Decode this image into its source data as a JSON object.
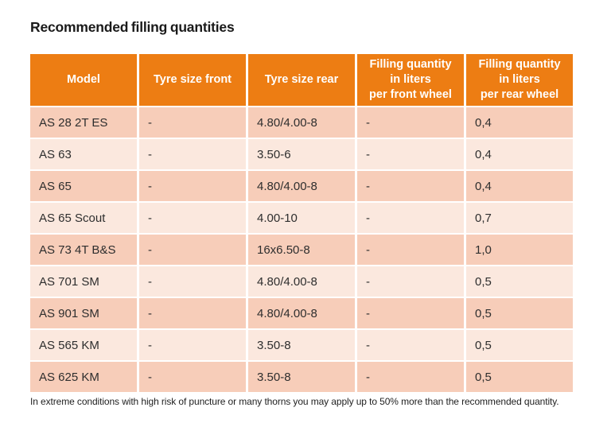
{
  "page": {
    "title": "Recommended filling quantities",
    "footnote": "In extreme conditions with high risk of puncture or many thorns you may apply up to 50% more than the recommended quantity."
  },
  "colors": {
    "header_bg": "#ED7D13",
    "header_text": "#FFFFFF",
    "row_dark": "#F7CDB9",
    "row_light": "#FBE8DE",
    "body_text": "#2E2E2E"
  },
  "table": {
    "columns": [
      "Model",
      "Tyre size front",
      "Tyre size rear",
      "Filling quantity\nin liters\nper front wheel",
      "Filling quantity\nin liters\nper rear wheel"
    ],
    "rows": [
      [
        "AS 28 2T ES",
        "-",
        "4.80/4.00-8",
        "-",
        "0,4"
      ],
      [
        "AS 63",
        "-",
        "3.50-6",
        "-",
        "0,4"
      ],
      [
        "AS 65",
        "-",
        "4.80/4.00-8",
        "-",
        "0,4"
      ],
      [
        "AS 65 Scout",
        "-",
        "4.00-10",
        "-",
        "0,7"
      ],
      [
        "AS 73 4T B&S",
        "-",
        "16x6.50-8",
        "-",
        "1,0"
      ],
      [
        "AS 701 SM",
        "-",
        "4.80/4.00-8",
        "-",
        "0,5"
      ],
      [
        "AS 901 SM",
        "-",
        "4.80/4.00-8",
        "-",
        "0,5"
      ],
      [
        "AS 565 KM",
        "-",
        "3.50-8",
        "-",
        "0,5"
      ],
      [
        "AS 625 KM",
        "-",
        "3.50-8",
        "-",
        "0,5"
      ]
    ]
  }
}
